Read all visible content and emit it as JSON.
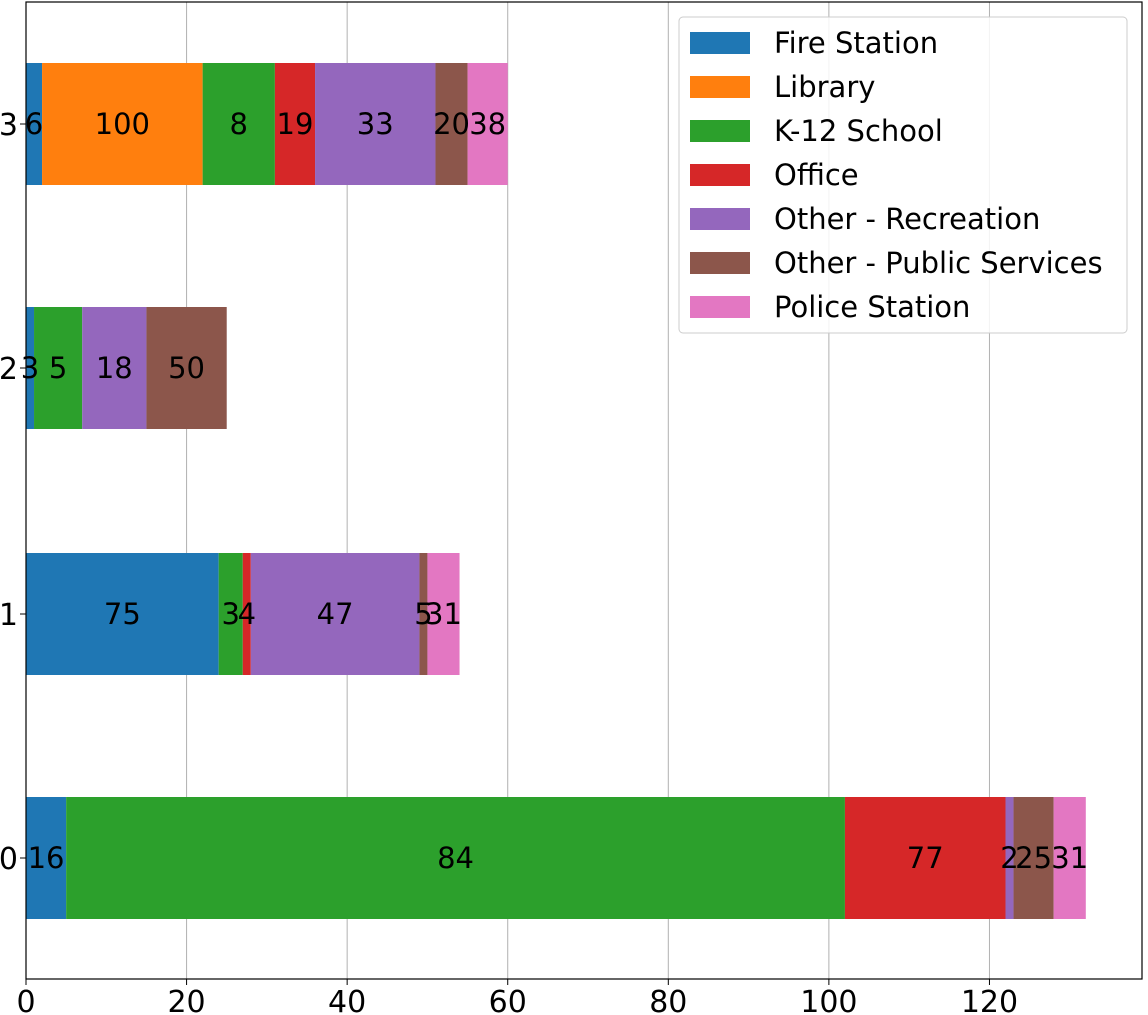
{
  "chart_data": {
    "type": "bar",
    "orientation": "horizontal",
    "stacked": true,
    "categories": [
      "0",
      "1",
      "2",
      "3"
    ],
    "series": [
      {
        "name": "Fire Station",
        "color": "#1f77b4",
        "values": [
          5,
          24,
          1,
          2
        ],
        "labels": [
          "16",
          "75",
          "3",
          "6"
        ]
      },
      {
        "name": "Library",
        "color": "#ff7f0e",
        "values": [
          0,
          0,
          0,
          20
        ],
        "labels": [
          "",
          "",
          "",
          "100"
        ]
      },
      {
        "name": "K-12 School",
        "color": "#2ca02c",
        "values": [
          97,
          3,
          6,
          9
        ],
        "labels": [
          "84",
          "3",
          "5",
          "8"
        ]
      },
      {
        "name": "Office",
        "color": "#d62728",
        "values": [
          20,
          1,
          0,
          5
        ],
        "labels": [
          "77",
          "4",
          "",
          "19"
        ]
      },
      {
        "name": "Other - Recreation",
        "color": "#9467bd",
        "values": [
          1,
          21,
          8,
          15
        ],
        "labels": [
          "2",
          "47",
          "18",
          "33"
        ]
      },
      {
        "name": "Other - Public Services",
        "color": "#8c564b",
        "values": [
          5,
          1,
          10,
          4
        ],
        "labels": [
          "25",
          "5",
          "50",
          "20"
        ]
      },
      {
        "name": "Police Station",
        "color": "#e377c2",
        "values": [
          4,
          4,
          0,
          5
        ],
        "labels": [
          "31",
          "31",
          "",
          "38"
        ]
      }
    ],
    "xlim": [
      0,
      139
    ],
    "xticks": [
      0,
      20,
      40,
      60,
      80,
      100,
      120
    ],
    "grid": "x",
    "legend": "top-right"
  }
}
